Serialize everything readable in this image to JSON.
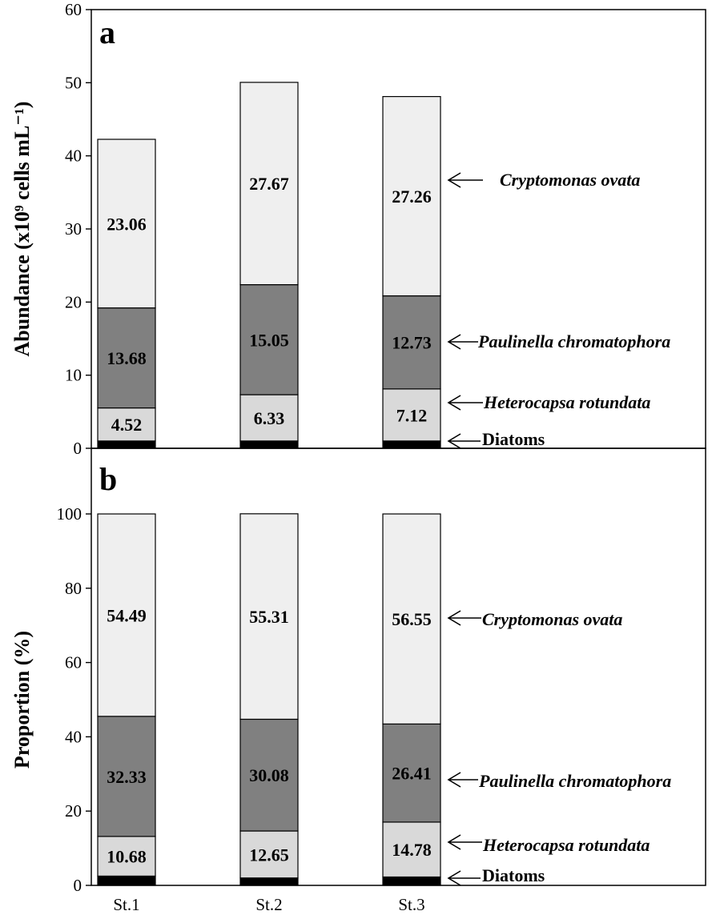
{
  "chart_data": [
    {
      "panel": "a",
      "type": "bar",
      "stacked": true,
      "categories": [
        "St.1",
        "St.2",
        "St.3"
      ],
      "ylabel": "Abundance (x10⁹ cells mL⁻¹)",
      "ylim": [
        0,
        60
      ],
      "yticks": [
        "0",
        "10",
        "20",
        "30",
        "40",
        "50",
        "60"
      ],
      "series": [
        {
          "name": "Diatoms",
          "values": [
            1.0,
            1.0,
            1.0
          ],
          "color": "#000000"
        },
        {
          "name": "Heterocapsa rotundata",
          "values": [
            4.52,
            6.33,
            7.12
          ],
          "labels": [
            "4.52",
            "6.33",
            "7.12"
          ],
          "color": "#d9d9d9"
        },
        {
          "name": "Paulinella chromatophora",
          "values": [
            13.68,
            15.05,
            12.73
          ],
          "labels": [
            "13.68",
            "15.05",
            "12.73"
          ],
          "color": "#808080"
        },
        {
          "name": "Cryptomonas ovata",
          "values": [
            23.06,
            27.67,
            27.26
          ],
          "labels": [
            "23.06",
            "27.67",
            "27.26"
          ],
          "color": "#efefef"
        }
      ]
    },
    {
      "panel": "b",
      "type": "bar",
      "stacked": true,
      "categories": [
        "St.1",
        "St.2",
        "St.3"
      ],
      "ylabel": "Proportion (%)",
      "ylim": [
        0,
        100
      ],
      "yticks": [
        "0",
        "20",
        "40",
        "60",
        "80",
        "100"
      ],
      "series": [
        {
          "name": "Diatoms",
          "values": [
            2.5,
            2.0,
            2.26
          ],
          "color": "#000000"
        },
        {
          "name": "Heterocapsa rotundata",
          "values": [
            10.68,
            12.65,
            14.78
          ],
          "labels": [
            "10.68",
            "12.65",
            "14.78"
          ],
          "color": "#d9d9d9"
        },
        {
          "name": "Paulinella chromatophora",
          "values": [
            32.33,
            30.08,
            26.41
          ],
          "labels": [
            "32.33",
            "30.08",
            "26.41"
          ],
          "color": "#808080"
        },
        {
          "name": "Cryptomonas ovata",
          "values": [
            54.49,
            55.31,
            56.55
          ],
          "labels": [
            "54.49",
            "55.31",
            "56.55"
          ],
          "color": "#efefef"
        }
      ]
    }
  ],
  "species_labels": {
    "cryptomonas": "Cryptomonas ovata",
    "paulinella": "Paulinella chromatophora",
    "heterocapsa": "Heterocapsa rotundata",
    "diatoms": "Diatoms"
  }
}
